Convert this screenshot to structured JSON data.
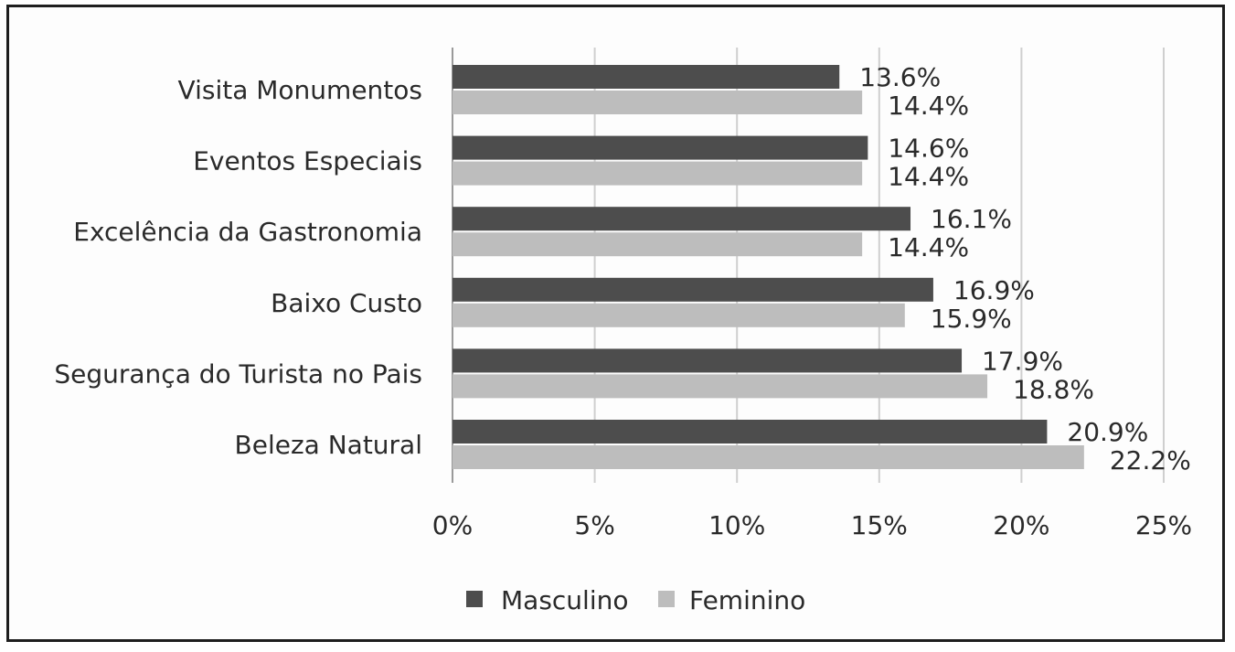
{
  "chart_data": {
    "type": "bar",
    "orientation": "horizontal",
    "categories": [
      "Visita Monumentos",
      "Eventos Especiais",
      "Excelência da Gastronomia",
      "Baixo Custo",
      "Segurança do Turista no Pais",
      "Beleza Natural"
    ],
    "series": [
      {
        "name": "Masculino",
        "values": [
          13.6,
          14.6,
          16.1,
          16.9,
          17.9,
          20.9
        ],
        "labels": [
          "13.6%",
          "14.6%",
          "16.1%",
          "16.9%",
          "17.9%",
          "20.9%"
        ],
        "color": "#4d4d4d"
      },
      {
        "name": "Feminino",
        "values": [
          14.4,
          14.4,
          14.4,
          15.9,
          18.8,
          22.2
        ],
        "labels": [
          "14.4%",
          "14.4%",
          "14.4%",
          "15.9%",
          "18.8%",
          "22.2%"
        ],
        "color": "#bdbdbd"
      }
    ],
    "xlim": [
      0,
      25
    ],
    "x_ticks": [
      "0%",
      "5%",
      "10%",
      "15%",
      "20%",
      "25%"
    ],
    "grid": true,
    "legend_position": "bottom",
    "title": "",
    "xlabel": "",
    "ylabel": ""
  }
}
